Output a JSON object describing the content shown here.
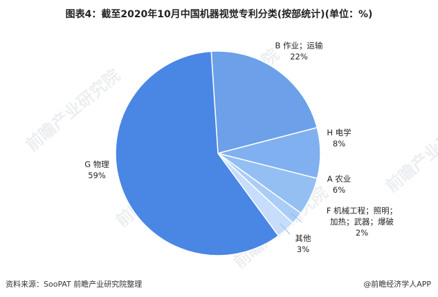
{
  "header": {
    "title": "图表4：截至2020年10月中国机器视觉专利分类(按部统计)(单位：%)"
  },
  "chart_data": {
    "type": "pie",
    "slices": [
      {
        "code": "B",
        "name": "作业；运输",
        "value": 22,
        "label_lines": [
          "B 作业；运输",
          "22%"
        ],
        "color": "#6ca0e8"
      },
      {
        "code": "H",
        "name": "电学",
        "value": 8,
        "label_lines": [
          "H 电学",
          "8%"
        ],
        "color": "#80b0ef"
      },
      {
        "code": "A",
        "name": "农业",
        "value": 6,
        "label_lines": [
          "A 农业",
          "6%"
        ],
        "color": "#93bff3"
      },
      {
        "code": "F",
        "name": "机械工程；照明；加热；武器；爆破",
        "value": 2,
        "label_lines": [
          "F 机械工程；照明；",
          "加热；武器；爆破",
          "2%"
        ],
        "color": "#a9cdf7"
      },
      {
        "code": "",
        "name": "其他",
        "value": 3,
        "label_lines": [
          "其他",
          "3%"
        ],
        "color": "#c6ddfb"
      },
      {
        "code": "G",
        "name": "物理",
        "value": 59,
        "label_lines": [
          "G 物理",
          "59%"
        ],
        "color": "#4a86e4"
      }
    ]
  },
  "footer": {
    "source": "资料来源：SooPAT 前瞻产业研究院整理",
    "credit": "@前瞻经济学人APP"
  },
  "watermark": {
    "text": "前瞻产业研究院"
  }
}
